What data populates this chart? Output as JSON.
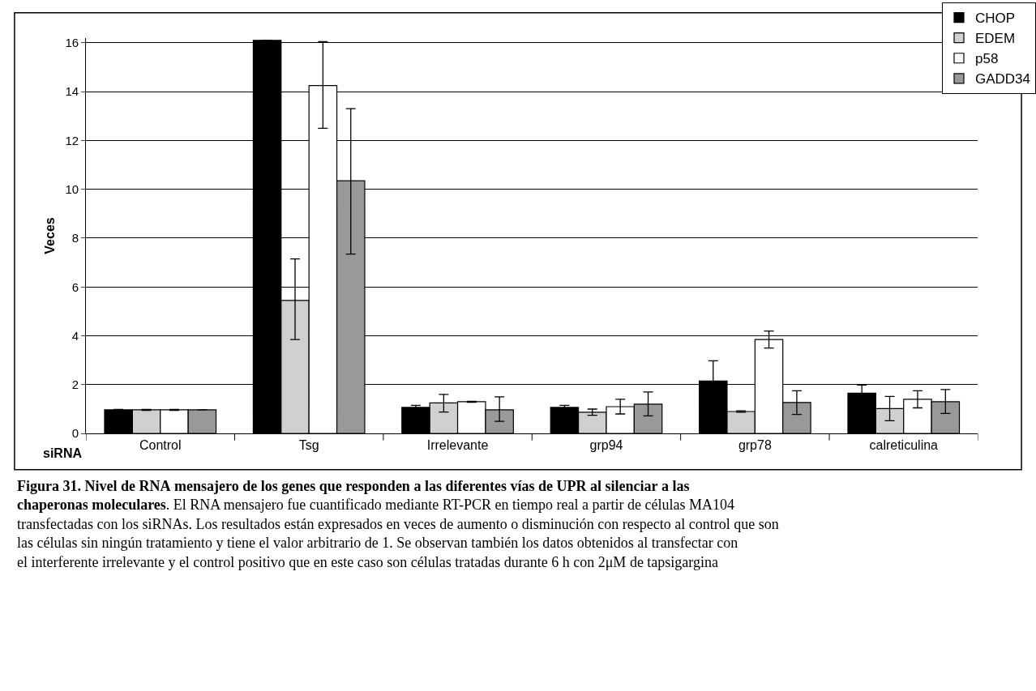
{
  "chart_data": {
    "type": "bar",
    "xlabel": "siRNA",
    "ylabel": "Veces",
    "categories": [
      "Control",
      "Tsg",
      "Irrelevante",
      "grp94",
      "grp78",
      "calreticulina"
    ],
    "series": [
      {
        "name": "CHOP",
        "color": "#000000",
        "values": [
          0.97,
          16.1,
          1.07,
          1.07,
          2.15,
          1.65
        ],
        "errors": [
          0.02,
          null,
          0.08,
          0.08,
          0.83,
          0.33
        ]
      },
      {
        "name": "EDEM",
        "color": "#d0d0d0",
        "values": [
          0.97,
          5.45,
          1.25,
          0.87,
          0.9,
          1.02
        ],
        "errors": [
          0.02,
          [
            3.85,
            7.15
          ],
          [
            0.88,
            1.6
          ],
          [
            0.75,
            1.0
          ],
          0.03,
          [
            0.52,
            1.52
          ]
        ]
      },
      {
        "name": "p58",
        "color": "#ffffff",
        "values": [
          0.97,
          14.25,
          1.3,
          1.1,
          3.85,
          1.4
        ],
        "errors": [
          0.02,
          [
            12.5,
            16.05
          ],
          0.02,
          [
            0.8,
            1.4
          ],
          [
            3.5,
            4.2
          ],
          [
            1.05,
            1.75
          ]
        ]
      },
      {
        "name": "GADD34",
        "color": "#999999",
        "values": [
          0.97,
          10.35,
          0.97,
          1.2,
          1.27,
          1.3
        ],
        "errors": [
          null,
          [
            7.35,
            13.3
          ],
          [
            0.5,
            1.5
          ],
          [
            0.72,
            1.7
          ],
          [
            0.78,
            1.75
          ],
          [
            0.82,
            1.8
          ]
        ]
      }
    ],
    "ylim": [
      0,
      16.2
    ],
    "yticks": [
      0,
      2,
      4,
      6,
      8,
      10,
      12,
      14,
      16
    ],
    "grid": "y",
    "legend": "top right",
    "annotations": [
      "Figura 31. Nivel de RNA mensajero de los genes que responden a las diferentes vías de UPR al silenciar a las chaperonas moleculares",
      ". El RNA mensajero fue cuantificado mediante RT-PCR en tiempo real a partir de células MA104 transfectadas con los siRNAs. Los resultados están expresados en veces de aumento o disminución con respecto al control que son las células sin ningún tratamiento y tiene el valor arbitrario de 1. Se observan también los datos obtenidos al transfectar con el interferente irrelevante y el control positivo que en este caso son células tratadas durante 6 h con 2μM de tapsigargina"
    ]
  }
}
